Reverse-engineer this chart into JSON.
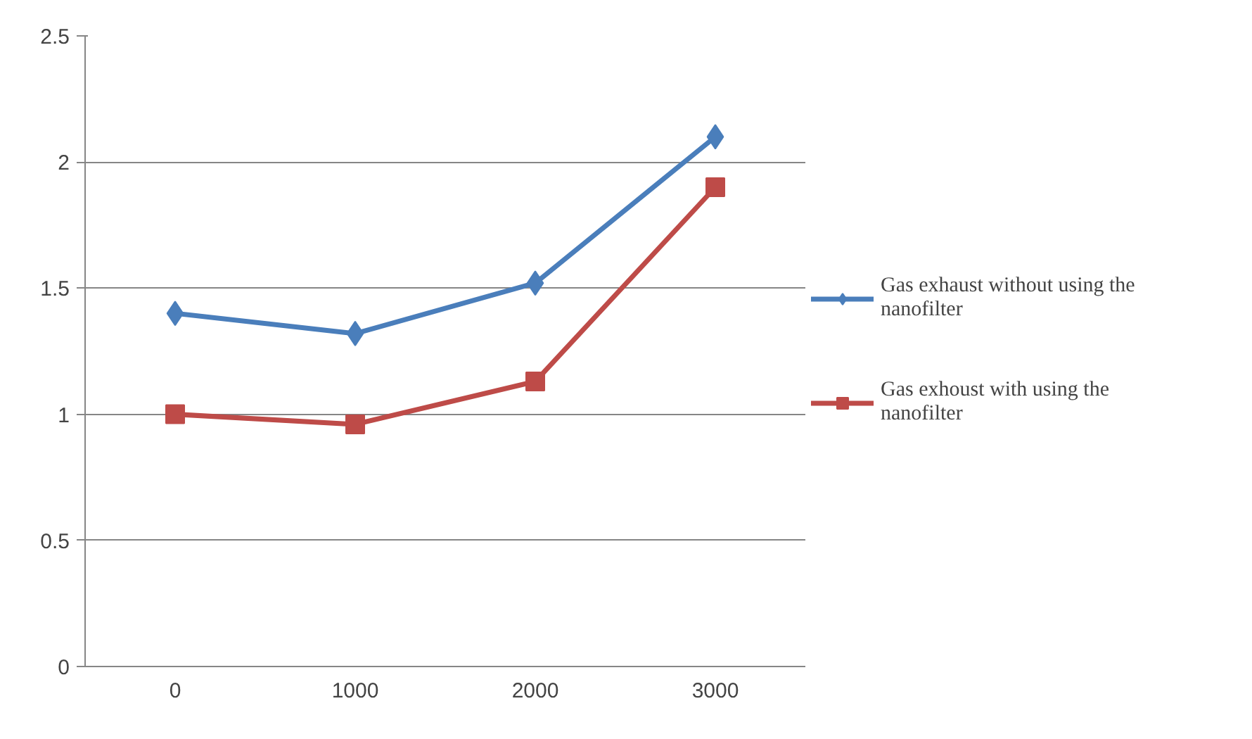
{
  "chart_data": {
    "type": "line",
    "categories": [
      "0",
      "1000",
      "2000",
      "3000"
    ],
    "series": [
      {
        "name": "Gas exhaust without using the nanofilter",
        "color": "#4a7ebb",
        "values": [
          1.4,
          1.32,
          1.52,
          2.1
        ],
        "marker": "diamond"
      },
      {
        "name": "Gas exhoust with using the nanofilter",
        "color": "#be4b48",
        "values": [
          1.0,
          0.96,
          1.13,
          1.9
        ],
        "marker": "square"
      }
    ],
    "ylim": [
      0,
      2.5
    ],
    "yticks": [
      0,
      0.5,
      1,
      1.5,
      2,
      2.5
    ],
    "grid": "y",
    "legend": "right",
    "line_style": "solid"
  }
}
